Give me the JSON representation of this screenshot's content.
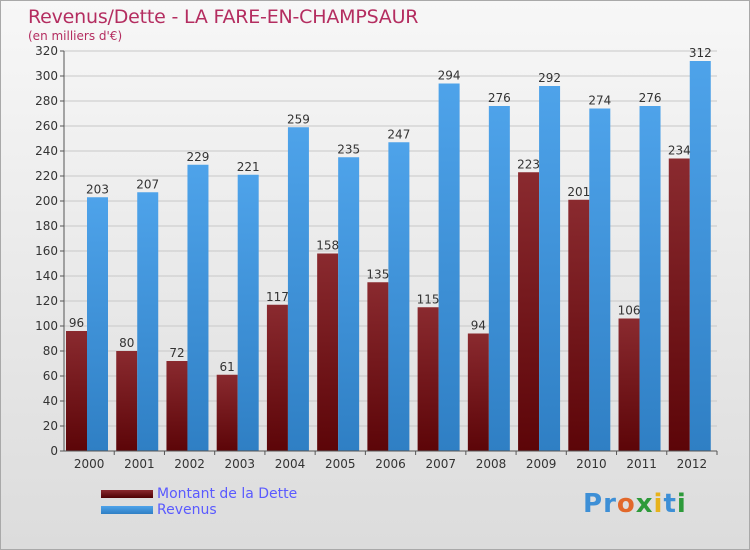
{
  "title": "Revenus/Dette - LA FARE-EN-CHAMPSAUR",
  "subtitle": "(en milliers d'€)",
  "brand": "Proxiti",
  "chart_data": {
    "type": "bar",
    "categories": [
      "2000",
      "2001",
      "2002",
      "2003",
      "2004",
      "2005",
      "2006",
      "2007",
      "2008",
      "2009",
      "2010",
      "2011",
      "2012"
    ],
    "series": [
      {
        "name": "Montant de la Dette",
        "color": "#7a1a1f",
        "values": [
          96,
          80,
          72,
          61,
          117,
          158,
          135,
          115,
          94,
          223,
          201,
          106,
          234
        ]
      },
      {
        "name": "Revenus",
        "color": "#3d8fd6",
        "values": [
          203,
          207,
          229,
          221,
          259,
          235,
          247,
          294,
          276,
          292,
          274,
          276,
          312
        ]
      }
    ],
    "ylim": [
      0,
      320
    ],
    "yticks": [
      0,
      20,
      40,
      60,
      80,
      100,
      120,
      140,
      160,
      180,
      200,
      220,
      240,
      260,
      280,
      300,
      320
    ],
    "grid": true,
    "legend_position": "bottom-left"
  }
}
